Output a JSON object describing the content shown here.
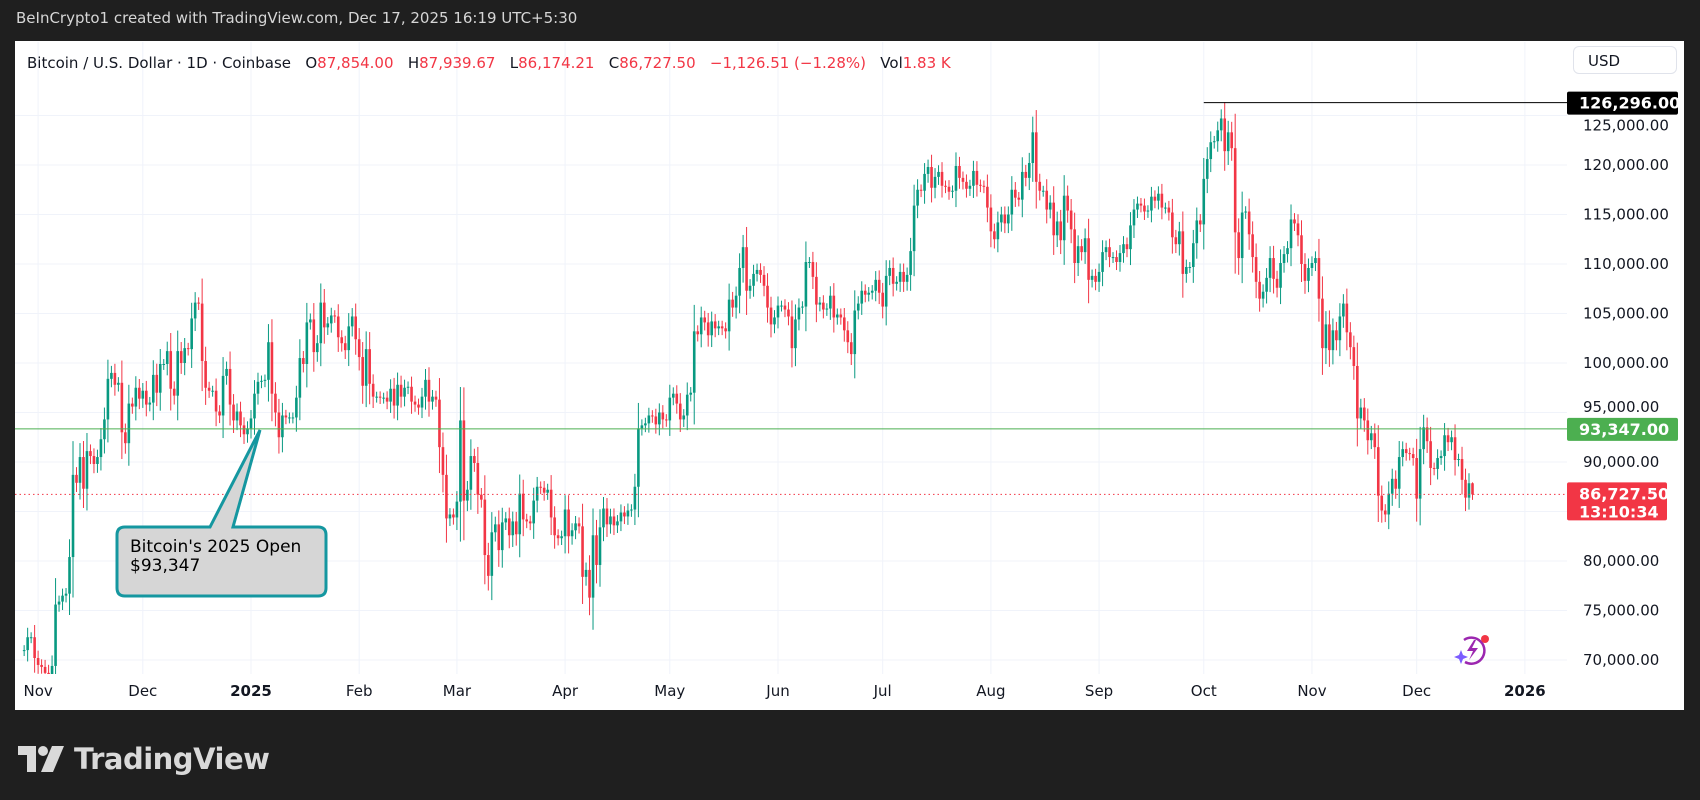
{
  "topbar": {
    "text": "BeInCrypto1 created with TradingView.com, Dec 17, 2025 16:19 UTC+5:30"
  },
  "legend": {
    "symbol": "Bitcoin / U.S. Dollar · 1D · Coinbase",
    "o_label": "O",
    "o_value": "87,854.00",
    "h_label": "H",
    "h_value": "87,939.67",
    "l_label": "L",
    "l_value": "86,174.21",
    "c_label": "C",
    "c_value": "86,727.50",
    "change": "−1,126.51 (−1.28%)",
    "vol_label": "Vol",
    "vol_value": "1.83 K"
  },
  "currency_button": "USD",
  "price_labels": {
    "high": "126,296.00",
    "open_2025": "93,347.00",
    "last": "86,727.50",
    "countdown": "13:10:34"
  },
  "annotation": {
    "line1": "Bitcoin's 2025 Open",
    "line2": "$93,347"
  },
  "brand": "TradingView",
  "colors": {
    "up": "#089981",
    "down": "#f23645",
    "open_line": "#4caf50",
    "high_line": "#000000",
    "callout_border": "#1597a0",
    "callout_fill": "#d6d6d6"
  },
  "chart_data": {
    "type": "candlestick",
    "title": "",
    "interval": "1D",
    "start_date": "2024-10-28",
    "ylim": [
      69000,
      127000
    ],
    "y_ticks": [
      70000,
      75000,
      80000,
      85000,
      90000,
      95000,
      100000,
      105000,
      110000,
      115000,
      120000,
      125000
    ],
    "y_tick_labels": [
      "70,000.00",
      "75,000.00",
      "80,000.00",
      "",
      "90,000.00",
      "95,000.00",
      "100,000.00",
      "105,000.00",
      "110,000.00",
      "115,000.00",
      "120,000.00",
      "125,000.00"
    ],
    "x_tick_labels": [
      {
        "label": "Nov",
        "date": "2024-11-01"
      },
      {
        "label": "Dec",
        "date": "2024-12-01"
      },
      {
        "label": "2025",
        "date": "2025-01-01"
      },
      {
        "label": "Feb",
        "date": "2025-02-01"
      },
      {
        "label": "Mar",
        "date": "2025-03-01"
      },
      {
        "label": "Apr",
        "date": "2025-04-01"
      },
      {
        "label": "May",
        "date": "2025-05-01"
      },
      {
        "label": "Jun",
        "date": "2025-06-01"
      },
      {
        "label": "Jul",
        "date": "2025-07-01"
      },
      {
        "label": "Aug",
        "date": "2025-08-01"
      },
      {
        "label": "Sep",
        "date": "2025-09-01"
      },
      {
        "label": "Oct",
        "date": "2025-10-01"
      },
      {
        "label": "Nov",
        "date": "2025-11-01"
      },
      {
        "label": "Dec",
        "date": "2025-12-01"
      },
      {
        "label": "2026",
        "date": "2026-01-01"
      }
    ],
    "grid": true,
    "horizontal_lines": [
      {
        "value": 126296,
        "start_date": "2025-10-01",
        "color": "#000000"
      },
      {
        "value": 93347,
        "color": "#4caf50"
      },
      {
        "value": 86727.5,
        "style": "dotted",
        "color": "#f23645"
      }
    ],
    "last": {
      "open": 87854.0,
      "high": 87939.67,
      "low": 86174.21,
      "close": 86727.5
    },
    "closes": [
      71000,
      72300,
      72300,
      70200,
      69500,
      69300,
      68700,
      67800,
      69400,
      75600,
      75900,
      76500,
      76700,
      80400,
      88700,
      87900,
      90500,
      87300,
      91100,
      90600,
      89800,
      90500,
      92300,
      94300,
      98400,
      99000,
      97800,
      98000,
      93000,
      91900,
      95900,
      95600,
      97500,
      96400,
      97200,
      95800,
      96000,
      98800,
      97000,
      99900,
      99900,
      101200,
      97400,
      96700,
      101200,
      100000,
      101500,
      101400,
      104500,
      106100,
      106000,
      100200,
      97500,
      97200,
      97200,
      95100,
      94700,
      98700,
      99400,
      95800,
      94200,
      95100,
      93700,
      92800,
      93400,
      94400,
      96900,
      98100,
      98200,
      98300,
      102100,
      96900,
      95000,
      92500,
      94700,
      94500,
      94500,
      94500,
      96500,
      100500,
      99900,
      104100,
      104400,
      101100,
      102000,
      106100,
      103600,
      104000,
      104800,
      104700,
      102600,
      102000,
      101300,
      103700,
      104700,
      102400,
      100600,
      97700,
      101400,
      97900,
      96600,
      96600,
      96500,
      96500,
      96100,
      97400,
      95700,
      97800,
      96600,
      97500,
      97600,
      96100,
      95800,
      95500,
      96600,
      98300,
      96100,
      96600,
      96300,
      91500,
      88700,
      84300,
      84700,
      84400,
      86000,
      94200,
      86100,
      87200,
      90600,
      89900,
      86700,
      86200,
      80600,
      78500,
      82900,
      83700,
      81100,
      83900,
      84300,
      82600,
      84000,
      82700,
      86800,
      84200,
      84000,
      83800,
      86100,
      87500,
      87400,
      86900,
      87200,
      84400,
      82600,
      82300,
      82500,
      85200,
      82500,
      83100,
      83800,
      83500,
      78400,
      79100,
      76300,
      82600,
      79600,
      83400,
      85300,
      83700,
      84500,
      83600,
      84000,
      84900,
      84500,
      85100,
      85200,
      87500,
      93400,
      93700,
      93900,
      94700,
      94600,
      93800,
      95000,
      94300,
      94200,
      96500,
      96900,
      95900,
      94300,
      94700,
      96800,
      97000,
      103200,
      102900,
      104600,
      104100,
      102800,
      104200,
      103500,
      103700,
      103500,
      103200,
      106400,
      105600,
      106800,
      109600,
      111700,
      107300,
      107800,
      109000,
      109400,
      108900,
      107800,
      105600,
      103900,
      104600,
      105800,
      105800,
      105400,
      104700,
      101500,
      104400,
      105600,
      105700,
      110200,
      110200,
      108700,
      105900,
      106100,
      105400,
      105500,
      106800,
      104600,
      104900,
      104600,
      103300,
      102100,
      100900,
      105300,
      106000,
      107300,
      106900,
      107100,
      107300,
      108400,
      107100,
      105700,
      108800,
      109600,
      108000,
      108200,
      109200,
      108200,
      108900,
      111300,
      115900,
      117500,
      117400,
      119100,
      119800,
      117700,
      118800,
      119300,
      117900,
      117800,
      117300,
      117400,
      119900,
      118700,
      118300,
      117600,
      117900,
      119400,
      118000,
      117900,
      117800,
      115700,
      113300,
      112500,
      114200,
      115000,
      114100,
      115000,
      117500,
      116700,
      116500,
      119300,
      118700,
      120200,
      123300,
      118300,
      117400,
      117400,
      115500,
      116200,
      112900,
      114300,
      112400,
      116900,
      115400,
      113500,
      110100,
      111800,
      111200,
      112600,
      108400,
      108800,
      108200,
      109200,
      111200,
      111700,
      110700,
      110700,
      110200,
      111100,
      112000,
      111500,
      113900,
      115500,
      116100,
      115900,
      115300,
      115400,
      116800,
      116400,
      117100,
      115700,
      115700,
      115200,
      112700,
      112000,
      113300,
      109000,
      109700,
      109700,
      112100,
      114400,
      114000,
      118600,
      120600,
      122300,
      122400,
      123500,
      124700,
      121400,
      123300,
      121700,
      113200,
      110600,
      115200,
      115300,
      113000,
      110700,
      108200,
      106500,
      107200,
      108600,
      110600,
      108500,
      107600,
      110100,
      111000,
      111600,
      114500,
      114100,
      112900,
      110000,
      108300,
      109600,
      110100,
      110600,
      106500,
      101500,
      103900,
      101300,
      103300,
      102300,
      104700,
      106000,
      103100,
      101600,
      99700,
      94400,
      95500,
      94200,
      92200,
      92900,
      91500,
      86600,
      85100,
      84700,
      86800,
      88300,
      87300,
      90500,
      91300,
      90900,
      90800,
      90400,
      86300,
      91300,
      93500,
      92100,
      89400,
      89300,
      90400,
      90600,
      92700,
      92000,
      92500,
      90200,
      90300,
      88200,
      86400,
      87854,
      86727.5
    ]
  }
}
